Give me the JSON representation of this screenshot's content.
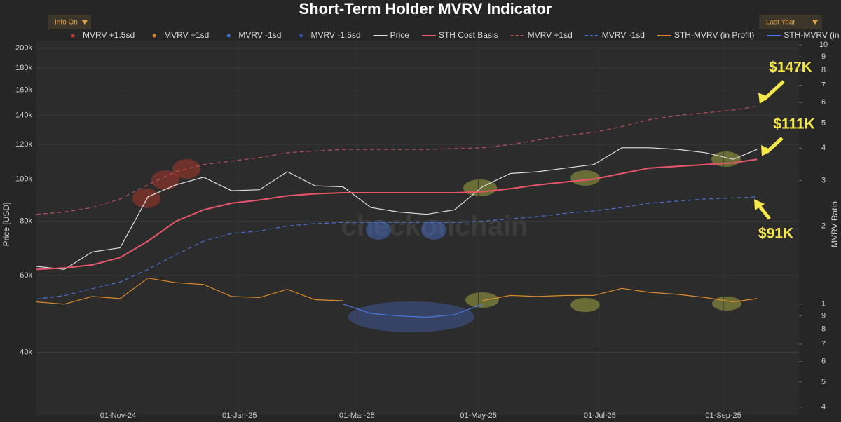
{
  "chart_data": {
    "type": "line",
    "title": "Short-Term Holder MVRV Indicator",
    "controls": {
      "info_button": "Info On",
      "range_button": "Last Year"
    },
    "watermark": "checkonchain",
    "y_label": "Price [USD]",
    "y2_label": "MVRV Ratio",
    "log_scale": true,
    "grid": true,
    "legend_position": "top",
    "x": [
      "2024-09-21",
      "2024-10-05",
      "2024-10-19",
      "2024-11-02",
      "2024-11-16",
      "2024-11-30",
      "2024-12-14",
      "2024-12-28",
      "2025-01-11",
      "2025-01-25",
      "2025-02-08",
      "2025-02-22",
      "2025-03-08",
      "2025-03-22",
      "2025-04-05",
      "2025-04-19",
      "2025-05-03",
      "2025-05-17",
      "2025-05-31",
      "2025-06-14",
      "2025-06-28",
      "2025-07-12",
      "2025-07-26",
      "2025-08-09",
      "2025-08-23",
      "2025-09-06",
      "2025-09-18"
    ],
    "xlim": [
      "2024-09-21",
      "2025-10-09"
    ],
    "xticks": [
      {
        "value": "2024-11-01",
        "label": "01-Nov-24"
      },
      {
        "value": "2025-01-01",
        "label": "01-Jan-25"
      },
      {
        "value": "2025-03-01",
        "label": "01-Mar-25"
      },
      {
        "value": "2025-05-01",
        "label": "01-May-25"
      },
      {
        "value": "2025-07-01",
        "label": "01-Jul-25"
      },
      {
        "value": "2025-09-01",
        "label": "01-Sep-25"
      }
    ],
    "ylim": [
      28700,
      208000
    ],
    "yticks": [
      {
        "value": 40000,
        "label": "40k"
      },
      {
        "value": 60000,
        "label": "60k"
      },
      {
        "value": 80000,
        "label": "80k"
      },
      {
        "value": 100000,
        "label": "100k"
      },
      {
        "value": 120000,
        "label": "120k"
      },
      {
        "value": 140000,
        "label": "140k"
      },
      {
        "value": 160000,
        "label": "160k"
      },
      {
        "value": 180000,
        "label": "180k"
      },
      {
        "value": 200000,
        "label": "200k"
      }
    ],
    "y2lim": [
      0.373,
      10.4
    ],
    "y2ticks": [
      {
        "value": 0.4,
        "label": "4"
      },
      {
        "value": 0.5,
        "label": "5"
      },
      {
        "value": 0.6,
        "label": "6"
      },
      {
        "value": 0.7,
        "label": "7"
      },
      {
        "value": 0.8,
        "label": "8"
      },
      {
        "value": 0.9,
        "label": "9"
      },
      1,
      2,
      3,
      4,
      5,
      6,
      7,
      8,
      9,
      10
    ],
    "series": [
      {
        "name": "MVRV +1.5sd",
        "color": "#c0392b",
        "marker": "dot",
        "values": [
          null,
          null,
          null,
          null,
          null,
          null,
          null,
          null,
          null,
          null,
          null,
          null,
          null,
          null,
          null,
          null,
          null,
          null,
          null,
          null,
          null,
          null,
          null,
          null,
          null,
          null,
          null
        ]
      },
      {
        "name": "MVRV +1sd",
        "color": "#d9822b",
        "marker": "dot",
        "values": [
          null,
          null,
          null,
          null,
          null,
          null,
          null,
          null,
          null,
          null,
          null,
          null,
          null,
          null,
          null,
          null,
          null,
          null,
          null,
          null,
          null,
          null,
          null,
          null,
          null,
          null,
          null
        ]
      },
      {
        "name": "MVRV -1sd",
        "color": "#3b6fd6",
        "marker": "dot",
        "values": [
          null,
          null,
          null,
          null,
          null,
          null,
          null,
          null,
          null,
          null,
          null,
          null,
          null,
          null,
          null,
          null,
          null,
          null,
          null,
          null,
          null,
          null,
          null,
          null,
          null,
          null,
          null
        ]
      },
      {
        "name": "MVRV -1.5sd",
        "color": "#2f4fa8",
        "marker": "dot",
        "values": [
          null,
          null,
          null,
          null,
          null,
          null,
          null,
          null,
          null,
          null,
          null,
          null,
          null,
          null,
          null,
          null,
          null,
          null,
          null,
          null,
          null,
          null,
          null,
          null,
          null,
          null,
          null
        ]
      },
      {
        "name": "Price",
        "color": "#dddddd",
        "style": "solid",
        "values": [
          63000,
          62000,
          68000,
          69500,
          91000,
          97000,
          101000,
          94000,
          94500,
          104000,
          96500,
          96000,
          86000,
          84000,
          83000,
          85000,
          96000,
          103000,
          104000,
          106000,
          108000,
          118000,
          118000,
          117000,
          115000,
          111000,
          117000
        ]
      },
      {
        "name": "STH Cost Basis",
        "color": "#e8566b",
        "style": "solid",
        "values": [
          62000,
          62500,
          63500,
          66000,
          72000,
          80000,
          85000,
          88000,
          89500,
          91500,
          92500,
          93000,
          93000,
          93000,
          93000,
          93000,
          93500,
          95000,
          97000,
          98500,
          100000,
          103000,
          106000,
          107000,
          108000,
          109000,
          111000
        ]
      },
      {
        "name": "MVRV +1sd",
        "color": "#b5505d",
        "style": "dashed",
        "values": [
          83000,
          84000,
          86000,
          90000,
          97000,
          104000,
          108000,
          110000,
          112000,
          115000,
          116000,
          117000,
          117000,
          117000,
          117000,
          117500,
          118000,
          120000,
          123000,
          126000,
          128000,
          132000,
          137000,
          140000,
          142000,
          144000,
          147000
        ]
      },
      {
        "name": "MVRV -1sd",
        "color": "#4a6fcf",
        "style": "dashed",
        "values": [
          53000,
          54000,
          56000,
          58000,
          62000,
          67000,
          72000,
          75000,
          76000,
          78000,
          79000,
          79500,
          79500,
          79500,
          79500,
          79500,
          80000,
          81000,
          82000,
          83500,
          84500,
          86000,
          88000,
          89000,
          90000,
          90500,
          91000
        ]
      },
      {
        "name": "STH-MVRV (in Profit)",
        "color": "#d98a2b",
        "style": "solid",
        "axis": "y2",
        "values": [
          1.02,
          1.0,
          1.07,
          1.05,
          1.26,
          1.21,
          1.19,
          1.07,
          1.06,
          1.14,
          1.04,
          1.03,
          null,
          null,
          null,
          null,
          1.03,
          1.08,
          1.07,
          1.08,
          1.08,
          1.15,
          1.11,
          1.09,
          1.06,
          1.02,
          1.05
        ]
      },
      {
        "name": "STH-MVRV (in Loss)",
        "color": "#4a78e0",
        "style": "solid",
        "axis": "y2",
        "values": [
          null,
          0.99,
          null,
          null,
          null,
          null,
          null,
          null,
          null,
          null,
          null,
          1.0,
          0.92,
          0.9,
          0.89,
          0.91,
          1.0,
          null,
          null,
          null,
          null,
          null,
          null,
          null,
          null,
          null,
          null
        ]
      }
    ],
    "annotations": [
      {
        "text": "$147K"
      },
      {
        "text": "$111K"
      },
      {
        "text": "$91K"
      }
    ]
  }
}
